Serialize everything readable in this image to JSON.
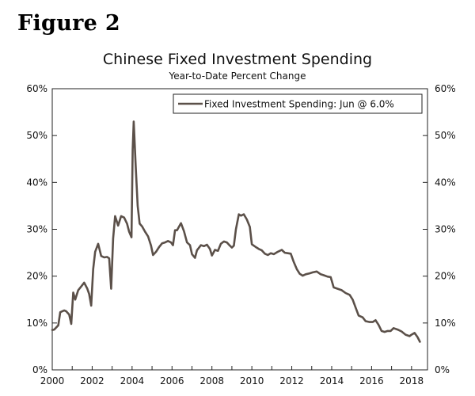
{
  "figure_label": "Figure 2",
  "colors": {
    "series": "#5b5049",
    "axis": "#222222"
  },
  "chart_data": {
    "type": "line",
    "title": "Chinese Fixed Investment Spending",
    "subtitle": "Year-to-Date Percent Change",
    "xlabel": "",
    "ylabel": "",
    "xlim": [
      2000,
      2018.8
    ],
    "ylim": [
      0,
      60
    ],
    "x_ticks": [
      "2000",
      "2002",
      "2004",
      "2006",
      "2008",
      "2010",
      "2012",
      "2014",
      "2016",
      "2018"
    ],
    "y_ticks_left": [
      "0%",
      "10%",
      "20%",
      "30%",
      "40%",
      "50%",
      "60%"
    ],
    "y_ticks_right": [
      "0%",
      "10%",
      "20%",
      "30%",
      "40%",
      "50%",
      "60%"
    ],
    "legend": {
      "position": "top-right",
      "label": "Fixed Investment Spending: Jun @ 6.0%"
    },
    "series": [
      {
        "name": "Fixed Investment Spending",
        "points": [
          [
            2000.0,
            8.5
          ],
          [
            2000.1,
            8.6
          ],
          [
            2000.3,
            9.5
          ],
          [
            2000.4,
            12.3
          ],
          [
            2000.6,
            12.7
          ],
          [
            2000.7,
            12.5
          ],
          [
            2000.85,
            11.8
          ],
          [
            2000.95,
            9.8
          ],
          [
            2001.05,
            16.5
          ],
          [
            2001.15,
            15.0
          ],
          [
            2001.3,
            17.0
          ],
          [
            2001.45,
            17.8
          ],
          [
            2001.6,
            18.6
          ],
          [
            2001.75,
            17.4
          ],
          [
            2001.85,
            16.2
          ],
          [
            2001.95,
            13.7
          ],
          [
            2002.05,
            21.5
          ],
          [
            2002.15,
            25.2
          ],
          [
            2002.3,
            26.9
          ],
          [
            2002.45,
            24.3
          ],
          [
            2002.6,
            24.0
          ],
          [
            2002.75,
            24.1
          ],
          [
            2002.85,
            23.8
          ],
          [
            2002.95,
            17.3
          ],
          [
            2003.05,
            28.0
          ],
          [
            2003.15,
            32.8
          ],
          [
            2003.3,
            30.8
          ],
          [
            2003.45,
            32.8
          ],
          [
            2003.6,
            32.5
          ],
          [
            2003.75,
            31.2
          ],
          [
            2003.85,
            29.5
          ],
          [
            2003.97,
            28.3
          ],
          [
            2004.03,
            47.0
          ],
          [
            2004.08,
            53.0
          ],
          [
            2004.18,
            43.5
          ],
          [
            2004.28,
            35.0
          ],
          [
            2004.38,
            31.2
          ],
          [
            2004.5,
            30.6
          ],
          [
            2004.65,
            29.5
          ],
          [
            2004.8,
            28.5
          ],
          [
            2004.95,
            26.5
          ],
          [
            2005.05,
            24.5
          ],
          [
            2005.2,
            25.2
          ],
          [
            2005.35,
            26.2
          ],
          [
            2005.5,
            27.0
          ],
          [
            2005.65,
            27.2
          ],
          [
            2005.8,
            27.5
          ],
          [
            2005.95,
            27.2
          ],
          [
            2006.05,
            26.6
          ],
          [
            2006.15,
            29.8
          ],
          [
            2006.25,
            29.8
          ],
          [
            2006.45,
            31.3
          ],
          [
            2006.6,
            29.6
          ],
          [
            2006.75,
            27.2
          ],
          [
            2006.9,
            26.6
          ],
          [
            2007.0,
            24.7
          ],
          [
            2007.15,
            23.9
          ],
          [
            2007.25,
            25.5
          ],
          [
            2007.45,
            26.6
          ],
          [
            2007.6,
            26.4
          ],
          [
            2007.75,
            26.7
          ],
          [
            2007.9,
            25.8
          ],
          [
            2008.0,
            24.4
          ],
          [
            2008.15,
            25.6
          ],
          [
            2008.3,
            25.4
          ],
          [
            2008.45,
            26.9
          ],
          [
            2008.6,
            27.4
          ],
          [
            2008.75,
            27.2
          ],
          [
            2008.9,
            26.5
          ],
          [
            2009.0,
            26.1
          ],
          [
            2009.1,
            26.5
          ],
          [
            2009.2,
            30.0
          ],
          [
            2009.35,
            33.2
          ],
          [
            2009.45,
            32.9
          ],
          [
            2009.6,
            33.2
          ],
          [
            2009.75,
            32.1
          ],
          [
            2009.9,
            30.5
          ],
          [
            2010.0,
            26.8
          ],
          [
            2010.2,
            26.2
          ],
          [
            2010.35,
            25.8
          ],
          [
            2010.5,
            25.5
          ],
          [
            2010.65,
            24.8
          ],
          [
            2010.8,
            24.5
          ],
          [
            2010.95,
            24.9
          ],
          [
            2011.1,
            24.7
          ],
          [
            2011.3,
            25.2
          ],
          [
            2011.5,
            25.6
          ],
          [
            2011.65,
            25.0
          ],
          [
            2011.8,
            24.9
          ],
          [
            2011.95,
            24.8
          ],
          [
            2012.1,
            23.0
          ],
          [
            2012.25,
            21.5
          ],
          [
            2012.4,
            20.5
          ],
          [
            2012.55,
            20.1
          ],
          [
            2012.7,
            20.4
          ],
          [
            2012.9,
            20.6
          ],
          [
            2013.05,
            20.8
          ],
          [
            2013.25,
            21.0
          ],
          [
            2013.45,
            20.4
          ],
          [
            2013.6,
            20.2
          ],
          [
            2013.8,
            19.9
          ],
          [
            2013.95,
            19.8
          ],
          [
            2014.1,
            17.6
          ],
          [
            2014.3,
            17.3
          ],
          [
            2014.5,
            17.0
          ],
          [
            2014.7,
            16.4
          ],
          [
            2014.9,
            16.0
          ],
          [
            2015.05,
            15.0
          ],
          [
            2015.2,
            13.3
          ],
          [
            2015.35,
            11.6
          ],
          [
            2015.55,
            11.2
          ],
          [
            2015.7,
            10.4
          ],
          [
            2015.9,
            10.2
          ],
          [
            2016.05,
            10.2
          ],
          [
            2016.2,
            10.6
          ],
          [
            2016.35,
            9.6
          ],
          [
            2016.5,
            8.3
          ],
          [
            2016.65,
            8.1
          ],
          [
            2016.8,
            8.3
          ],
          [
            2016.95,
            8.3
          ],
          [
            2017.1,
            8.9
          ],
          [
            2017.3,
            8.6
          ],
          [
            2017.5,
            8.2
          ],
          [
            2017.7,
            7.5
          ],
          [
            2017.9,
            7.2
          ],
          [
            2018.0,
            7.5
          ],
          [
            2018.15,
            7.9
          ],
          [
            2018.3,
            7.0
          ],
          [
            2018.42,
            6.0
          ]
        ]
      }
    ]
  }
}
